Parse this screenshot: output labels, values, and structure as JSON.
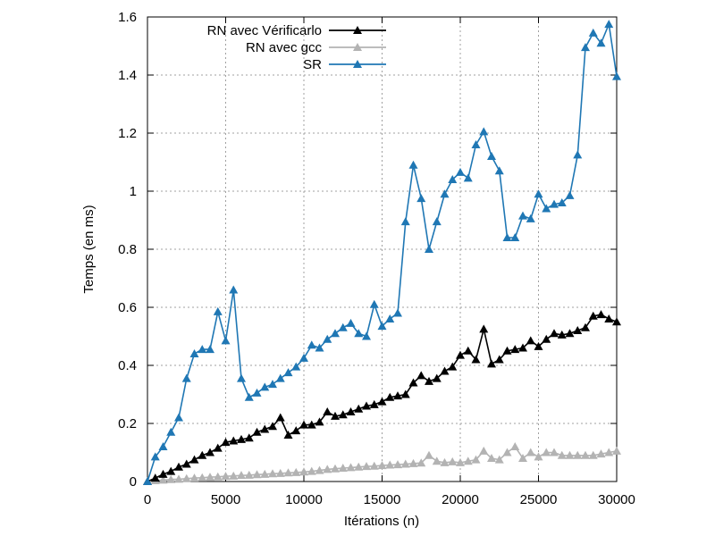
{
  "chart_data": {
    "type": "line",
    "xlabel": "Itérations (n)",
    "ylabel": "Temps (en ms)",
    "xlim": [
      0,
      30000
    ],
    "ylim": [
      0,
      1.6
    ],
    "xticks": [
      0,
      5000,
      10000,
      15000,
      20000,
      25000,
      30000
    ],
    "yticks": [
      0,
      0.2,
      0.4,
      0.6,
      0.8,
      1,
      1.2,
      1.4,
      1.6
    ],
    "xtick_labels": [
      "0",
      "5000",
      "10000",
      "15000",
      "20000",
      "25000",
      "30000"
    ],
    "ytick_labels": [
      "0",
      "0.2",
      "0.4",
      "0.6",
      "0.8",
      "1",
      "1.2",
      "1.4",
      "1.6"
    ],
    "grid": true,
    "legend_position": "top-left",
    "x": [
      0,
      500,
      1000,
      1500,
      2000,
      2500,
      3000,
      3500,
      4000,
      4500,
      5000,
      5500,
      6000,
      6500,
      7000,
      7500,
      8000,
      8500,
      9000,
      9500,
      10000,
      10500,
      11000,
      11500,
      12000,
      12500,
      13000,
      13500,
      14000,
      14500,
      15000,
      15500,
      16000,
      16500,
      17000,
      17500,
      18000,
      18500,
      19000,
      19500,
      20000,
      20500,
      21000,
      21500,
      22000,
      22500,
      23000,
      23500,
      24000,
      24500,
      25000,
      25500,
      26000,
      26500,
      27000,
      27500,
      28000,
      28500,
      29000,
      29500,
      30000
    ],
    "series": [
      {
        "name": "RN avec Vérificarlo",
        "color": "#000000",
        "values": [
          0,
          0.012,
          0.025,
          0.035,
          0.05,
          0.06,
          0.075,
          0.09,
          0.1,
          0.115,
          0.135,
          0.14,
          0.145,
          0.15,
          0.17,
          0.18,
          0.19,
          0.22,
          0.16,
          0.175,
          0.195,
          0.195,
          0.205,
          0.24,
          0.225,
          0.23,
          0.24,
          0.25,
          0.26,
          0.265,
          0.275,
          0.29,
          0.295,
          0.3,
          0.34,
          0.365,
          0.345,
          0.355,
          0.38,
          0.395,
          0.435,
          0.45,
          0.42,
          0.525,
          0.405,
          0.42,
          0.45,
          0.455,
          0.46,
          0.485,
          0.465,
          0.49,
          0.51,
          0.505,
          0.51,
          0.52,
          0.53,
          0.57,
          0.575,
          0.56,
          0.55
        ]
      },
      {
        "name": "RN avec gcc",
        "color": "#b3b3b3",
        "values": [
          0,
          0.003,
          0.005,
          0.007,
          0.008,
          0.01,
          0.012,
          0.013,
          0.015,
          0.016,
          0.018,
          0.019,
          0.021,
          0.022,
          0.024,
          0.025,
          0.027,
          0.028,
          0.03,
          0.031,
          0.033,
          0.035,
          0.038,
          0.042,
          0.044,
          0.046,
          0.048,
          0.05,
          0.052,
          0.053,
          0.055,
          0.057,
          0.058,
          0.06,
          0.062,
          0.064,
          0.09,
          0.07,
          0.065,
          0.068,
          0.065,
          0.07,
          0.075,
          0.105,
          0.08,
          0.075,
          0.1,
          0.12,
          0.08,
          0.1,
          0.085,
          0.1,
          0.1,
          0.09,
          0.09,
          0.09,
          0.09,
          0.09,
          0.095,
          0.1,
          0.105
        ]
      },
      {
        "name": "SR",
        "color": "#1f77b4",
        "values": [
          0,
          0.085,
          0.12,
          0.17,
          0.22,
          0.355,
          0.44,
          0.455,
          0.455,
          0.585,
          0.485,
          0.66,
          0.355,
          0.29,
          0.305,
          0.325,
          0.335,
          0.355,
          0.375,
          0.395,
          0.425,
          0.47,
          0.46,
          0.49,
          0.51,
          0.53,
          0.545,
          0.51,
          0.5,
          0.61,
          0.535,
          0.56,
          0.58,
          0.895,
          1.09,
          0.975,
          0.8,
          0.895,
          0.99,
          1.04,
          1.065,
          1.045,
          1.16,
          1.205,
          1.12,
          1.07,
          0.84,
          0.84,
          0.915,
          0.905,
          0.99,
          0.94,
          0.955,
          0.96,
          0.985,
          1.125,
          1.495,
          1.545,
          1.51,
          1.575,
          1.395
        ]
      }
    ]
  }
}
